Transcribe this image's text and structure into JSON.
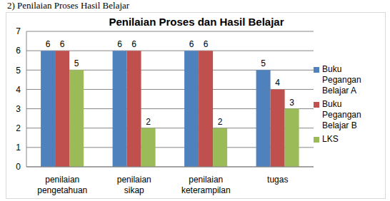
{
  "chart_data": {
    "type": "bar",
    "annotations": [
      "2) Penilaian Proses Hasil Belajar"
    ],
    "title": "Penilaian Proses dan Hasil Belajar",
    "categories": [
      "penilaian pengetahuan",
      "penilaian sikap",
      "penilaian keterampilan",
      "tugas"
    ],
    "series": [
      {
        "name": "Buku Pegangan Belajar A",
        "color": "#4f81bd",
        "values": [
          6,
          6,
          6,
          5
        ]
      },
      {
        "name": "Buku Pegangan Belajar B",
        "color": "#c0504d",
        "values": [
          6,
          6,
          6,
          4
        ]
      },
      {
        "name": "LKS",
        "color": "#9bbb59",
        "values": [
          5,
          2,
          2,
          3
        ]
      }
    ],
    "ylim": [
      0,
      7
    ],
    "yticks": [
      0,
      1,
      2,
      3,
      4,
      5,
      6,
      7
    ],
    "grid": true,
    "legend": "right",
    "data_labels": true
  }
}
